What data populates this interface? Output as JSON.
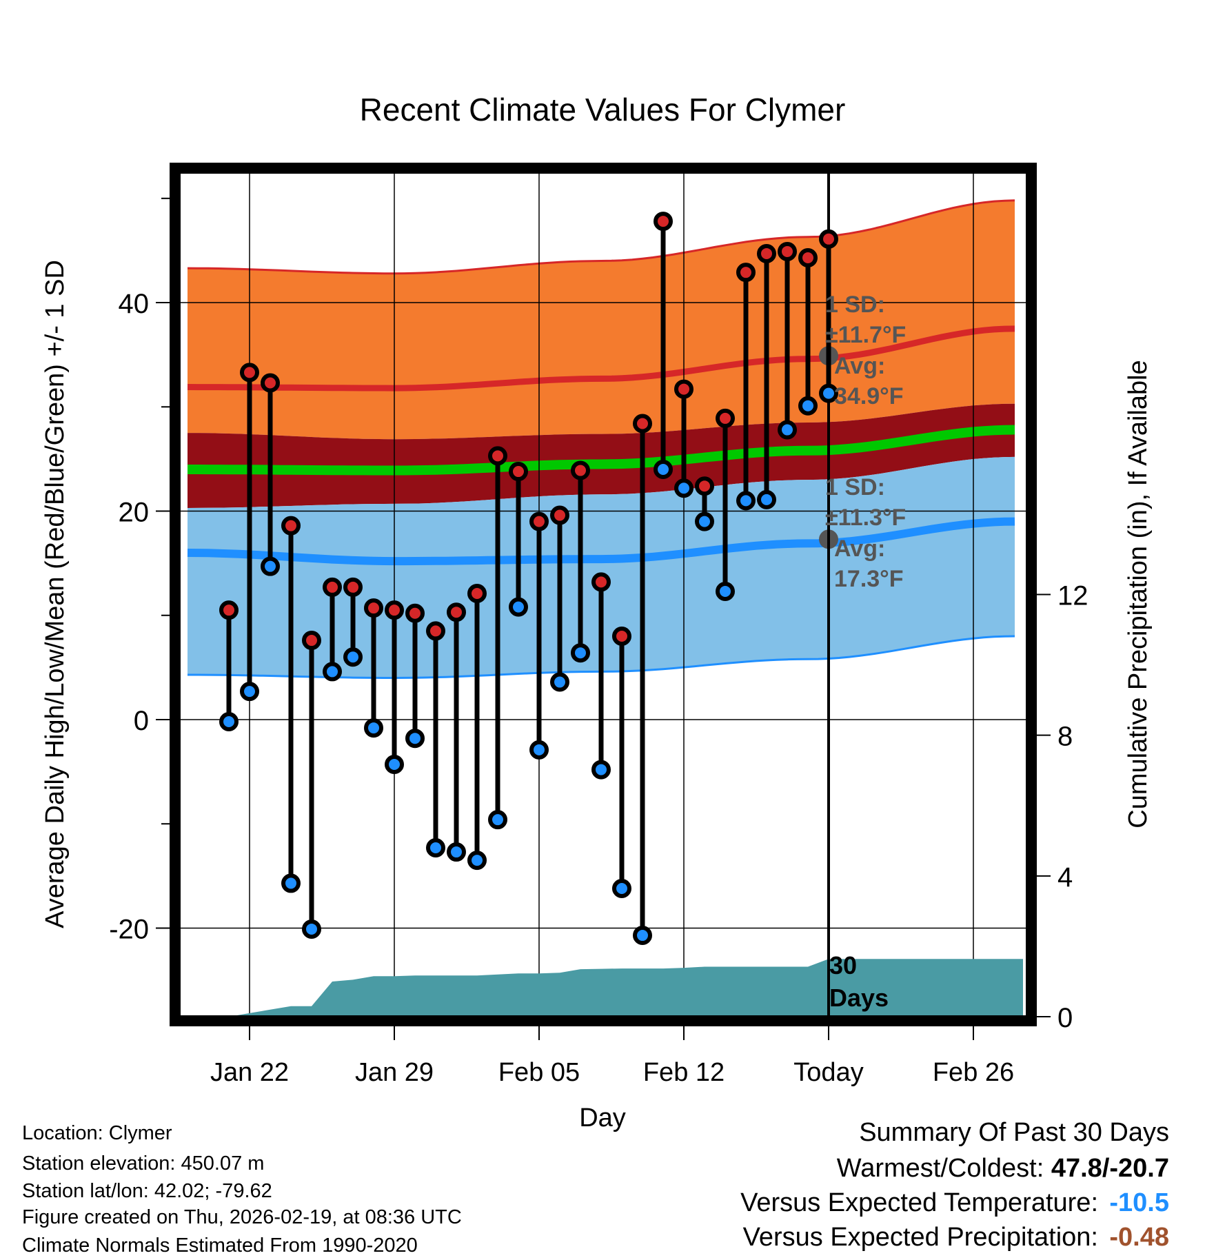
{
  "chart_data": {
    "type": "line",
    "title": "Recent Climate Values For Clymer",
    "xlabel": "Day",
    "ylabel": "Average Daily High/Low/Mean (Red/Blue/Green) +/- 1 SD",
    "ylabel_right": "Cumulative Precipitation (in), If Available",
    "ylim": [
      -28.5,
      52.5
    ],
    "yticks": [
      -20,
      0,
      20,
      40
    ],
    "ylim_right": [
      0,
      24
    ],
    "yticks_right": [
      0,
      4,
      8,
      12
    ],
    "xlim": [
      -2.4,
      38.6
    ],
    "xticks": [
      {
        "day": 1,
        "label": "Jan 22"
      },
      {
        "day": 8,
        "label": "Jan 29"
      },
      {
        "day": 15,
        "label": "Feb 05"
      },
      {
        "day": 22,
        "label": "Feb 12"
      },
      {
        "day": 29,
        "label": "Today"
      },
      {
        "day": 36,
        "label": "Feb 26"
      }
    ],
    "grid": true,
    "normal_high": {
      "day": [
        -2,
        8,
        18,
        28,
        38
      ],
      "mean": [
        31.9,
        31.8,
        32.7,
        34.6,
        37.5
      ],
      "upper": [
        43.3,
        42.8,
        44.0,
        46.3,
        49.8
      ],
      "lower": [
        27.5,
        26.9,
        27.4,
        28.5,
        30.3
      ]
    },
    "normal_mean": {
      "day": [
        -2,
        8,
        18,
        28,
        38
      ],
      "mean": [
        24.0,
        23.9,
        24.5,
        25.8,
        27.8
      ],
      "upper": [
        27.5,
        26.9,
        27.4,
        28.5,
        30.3
      ],
      "lower": [
        20.3,
        20.7,
        21.6,
        23.0,
        25.2
      ]
    },
    "normal_low": {
      "day": [
        -2,
        8,
        18,
        28,
        38
      ],
      "mean": [
        16.0,
        15.2,
        15.4,
        16.9,
        19.0
      ],
      "upper": [
        20.3,
        20.7,
        21.6,
        23.0,
        25.2
      ],
      "lower": [
        4.3,
        4.0,
        4.6,
        5.8,
        8.0
      ]
    },
    "series": [
      {
        "name": "High",
        "color": "#d62728",
        "values": [
          10.5,
          33.3,
          32.3,
          18.6,
          7.6,
          12.7,
          12.7,
          10.7,
          10.5,
          10.2,
          8.5,
          10.3,
          12.1,
          25.3,
          23.8,
          19.0,
          19.6,
          23.9,
          13.2,
          8.0,
          28.4,
          47.8,
          31.7,
          22.4,
          28.9,
          42.9,
          44.7,
          44.9,
          44.3,
          46.1
        ]
      },
      {
        "name": "Low",
        "color": "#1f8fff",
        "values": [
          -0.2,
          2.7,
          14.7,
          -15.7,
          -20.1,
          4.6,
          6.0,
          -0.8,
          -4.3,
          -1.8,
          -12.3,
          -12.7,
          -13.5,
          -9.6,
          10.8,
          -2.9,
          3.6,
          6.4,
          -4.8,
          -16.2,
          -20.7,
          24.0,
          22.2,
          19.0,
          12.3,
          21.0,
          21.1,
          27.8,
          30.1,
          31.3
        ]
      },
      {
        "name": "Cumulative Precipitation",
        "color": "#4a9ba4",
        "axis": "right",
        "values": [
          0.0,
          0.1,
          0.2,
          0.3,
          0.3,
          1.0,
          1.05,
          1.15,
          1.15,
          1.17,
          1.17,
          1.17,
          1.17,
          1.2,
          1.23,
          1.23,
          1.25,
          1.35,
          1.36,
          1.37,
          1.37,
          1.37,
          1.39,
          1.42,
          1.42,
          1.42,
          1.42,
          1.42,
          1.42,
          1.64,
          1.64
        ]
      }
    ],
    "annotations": {
      "high_sd": "1 SD:",
      "high_sd_value": "±11.7°F",
      "high_avg": "Avg:",
      "high_avg_value": "34.9°F",
      "high_avg_marker": 34.9,
      "low_sd": "1 SD:",
      "low_sd_value": "±11.3°F",
      "low_avg": "Avg:",
      "low_avg_value": "17.3°F",
      "low_avg_marker": 17.3,
      "days_label_1": "30",
      "days_label_2": "Days"
    }
  },
  "info": {
    "location": "Location: Clymer",
    "elevation": "Station elevation: 450.07 m",
    "latlon": "Station lat/lon: 42.02; -79.62",
    "created": "Figure created on Thu, 2026-02-19, at 08:36 UTC",
    "normals": "Climate Normals Estimated From 1990-2020"
  },
  "summary": {
    "title": "Summary Of Past 30 Days",
    "warm_cold_label": "Warmest/Coldest:",
    "warm_cold_value": "47.8/-20.7",
    "temp_label": "Versus Expected Temperature:",
    "temp_value": "-10.5",
    "temp_color": "#1f8fff",
    "precip_label": "Versus Expected Precipitation:",
    "precip_value": "-0.48",
    "precip_color": "#a0522d"
  },
  "colors": {
    "high_band": "#f47b2e",
    "high_line": "#d62728",
    "mean_band": "#930e16",
    "mean_line": "#00c800",
    "low_band": "#82c0e8",
    "low_line": "#1f8fff",
    "precip": "#4a9ba4",
    "annotation": "#555555"
  }
}
